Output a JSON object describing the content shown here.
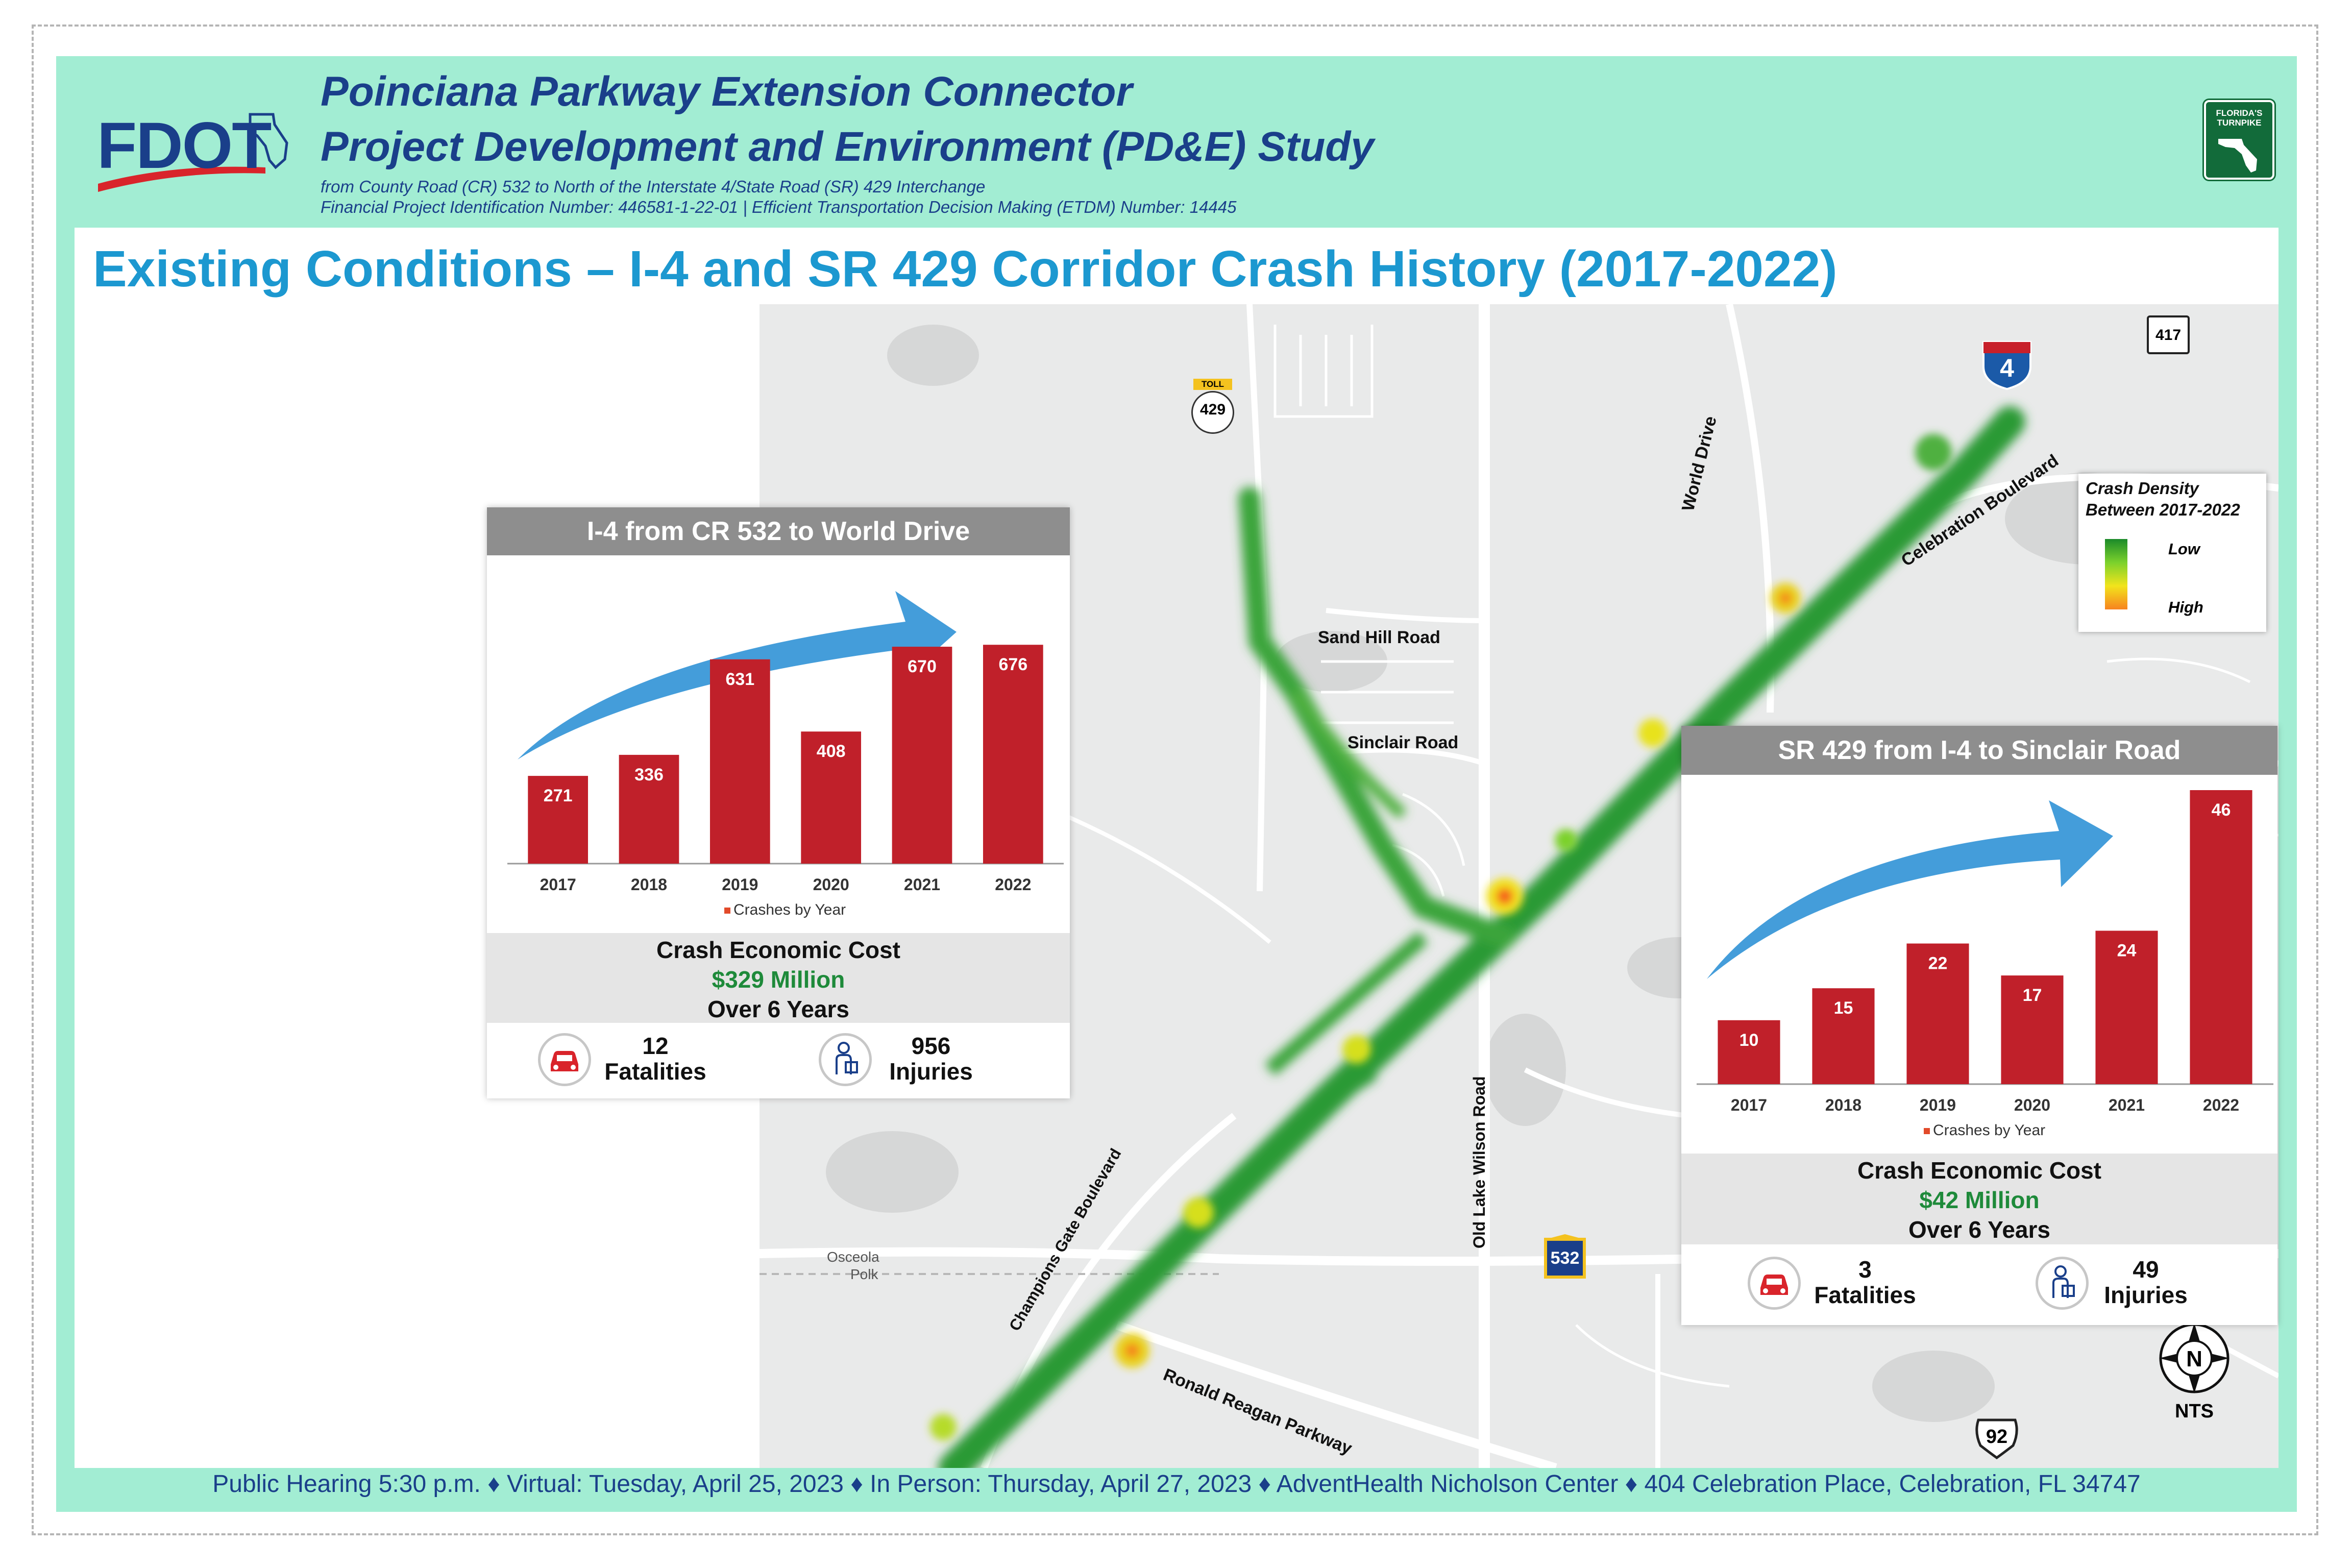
{
  "header": {
    "logo_text": "FDOT",
    "title_line1": "Poinciana Parkway Extension Connector",
    "title_line2": "Project Development and Environment (PD&E) Study",
    "sub_line1": "from County Road (CR) 532 to North of the Interstate 4/State Road (SR) 429 Interchange",
    "sub_line2": "Financial Project Identification Number: 446581-1-22-01 |  Efficient Transportation Decision Making (ETDM) Number: 14445",
    "turnpike_text": "FLORIDA'S TURNPIKE"
  },
  "page_title": "Existing Conditions – I-4 and SR 429 Corridor Crash History (2017-2022)",
  "legend": {
    "title_line1": "Crash Density",
    "title_line2": "Between 2017-2022",
    "low": "Low",
    "high": "High",
    "colors": [
      "#1b8a2a",
      "#7bd12c",
      "#f2e41c",
      "#f7831f"
    ]
  },
  "map_labels": {
    "sand_hill": "Sand Hill Road",
    "sinclair": "Sinclair Road",
    "world_drive": "World Drive",
    "celebration": "Celebration Boulevard",
    "old_lake_wilson": "Old Lake Wilson Road",
    "champions_gate": "Champions Gate Boulevard",
    "ronald_reagan": "Ronald Reagan Parkway",
    "osceola": "Osceola",
    "polk": "Polk",
    "nts": "NTS",
    "north": "N"
  },
  "shields": {
    "i4": "4",
    "sr429": "429",
    "sr429_toll": "TOLL",
    "sr417": "417",
    "cr532": "532",
    "us92": "92"
  },
  "footer": "Public Hearing 5:30 p.m. ♦ Virtual: Tuesday, April 25, 2023 ♦ In Person: Thursday, April 27, 2023 ♦  AdventHealth Nicholson Center ♦ 404 Celebration Place, Celebration, FL 34747",
  "panels": {
    "i4": {
      "title": "I-4 from CR 532 to World Drive",
      "cost_label": "Crash Economic Cost",
      "cost_value": "$329 Million",
      "cost_period": "Over 6 Years",
      "fatalities_value": "12",
      "fatalities_label": "Fatalities",
      "injuries_value": "956",
      "injuries_label": "Injuries"
    },
    "sr429": {
      "title": "SR 429 from I-4 to Sinclair Road",
      "cost_label": "Crash Economic Cost",
      "cost_value": "$42 Million",
      "cost_period": "Over 6 Years",
      "fatalities_value": "3",
      "fatalities_label": "Fatalities",
      "injuries_value": "49",
      "injuries_label": "Injuries"
    }
  },
  "chart_data": [
    {
      "type": "bar",
      "title": "I-4 from CR 532 to World Drive",
      "categories": [
        "2017",
        "2018",
        "2019",
        "2020",
        "2021",
        "2022"
      ],
      "series": [
        {
          "name": "Crashes by Year",
          "values": [
            271,
            336,
            631,
            408,
            670,
            676
          ]
        }
      ],
      "ylim": [
        0,
        700
      ],
      "bar_color": "#c0202a",
      "legend": "bottom"
    },
    {
      "type": "bar",
      "title": "SR 429 from I-4 to Sinclair Road",
      "categories": [
        "2017",
        "2018",
        "2019",
        "2020",
        "2021",
        "2022"
      ],
      "series": [
        {
          "name": "Crashes by Year",
          "values": [
            10,
            15,
            22,
            17,
            24,
            46
          ]
        }
      ],
      "ylim": [
        0,
        46
      ],
      "bar_color": "#c0202a",
      "legend": "bottom"
    }
  ]
}
